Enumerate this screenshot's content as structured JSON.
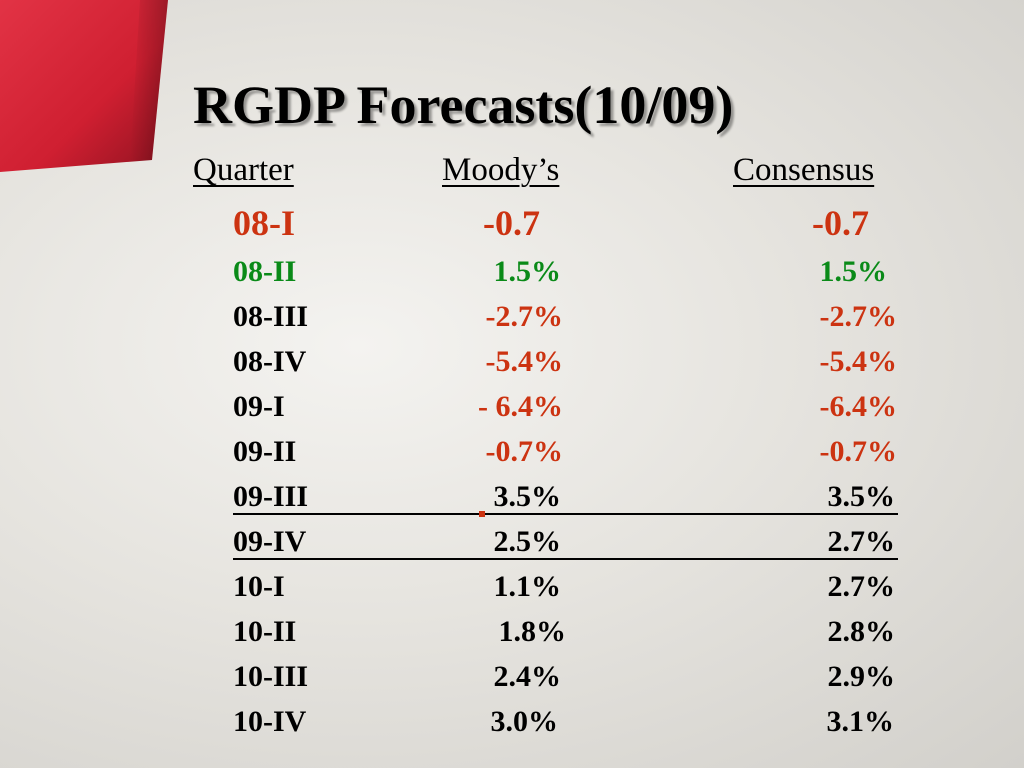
{
  "slide": {
    "title": "RGDP Forecasts(10/09)",
    "headers": {
      "quarter": "Quarter",
      "moodys": "Moody’s",
      "consensus": "Consensus"
    },
    "rows": [
      {
        "quarter": "08-I",
        "moodys": "-0.7",
        "consensus": "-0.7"
      },
      {
        "quarter": "08-II",
        "moodys": "1.5%",
        "consensus": "1.5%"
      },
      {
        "quarter": "08-III",
        "moodys": "-2.7%",
        "consensus": "-2.7%"
      },
      {
        "quarter": "08-IV",
        "moodys": "-5.4%",
        "consensus": "-5.4%"
      },
      {
        "quarter": "09-I",
        "moodys": "- 6.4%",
        "consensus": "-6.4%"
      },
      {
        "quarter": "09-II",
        "moodys": "-0.7%",
        "consensus": "-0.7%"
      },
      {
        "quarter": "09-III",
        "moodys": "3.5%",
        "consensus": "3.5%"
      },
      {
        "quarter": "09-IV",
        "moodys": "2.5%",
        "consensus": "2.7%"
      },
      {
        "quarter": "10-I",
        "moodys": "1.1%",
        "consensus": "2.7%"
      },
      {
        "quarter": "10-II",
        "moodys": "1.8%",
        "consensus": "2.8%"
      },
      {
        "quarter": "10-III",
        "moodys": "2.4%",
        "consensus": "2.9%"
      },
      {
        "quarter": "10-IV",
        "moodys": "3.0%",
        "consensus": "3.1%"
      }
    ]
  },
  "colors": {
    "red": "#cc3311",
    "green": "#0a8a18",
    "black": "#000000",
    "accent_red": "#d42436"
  }
}
